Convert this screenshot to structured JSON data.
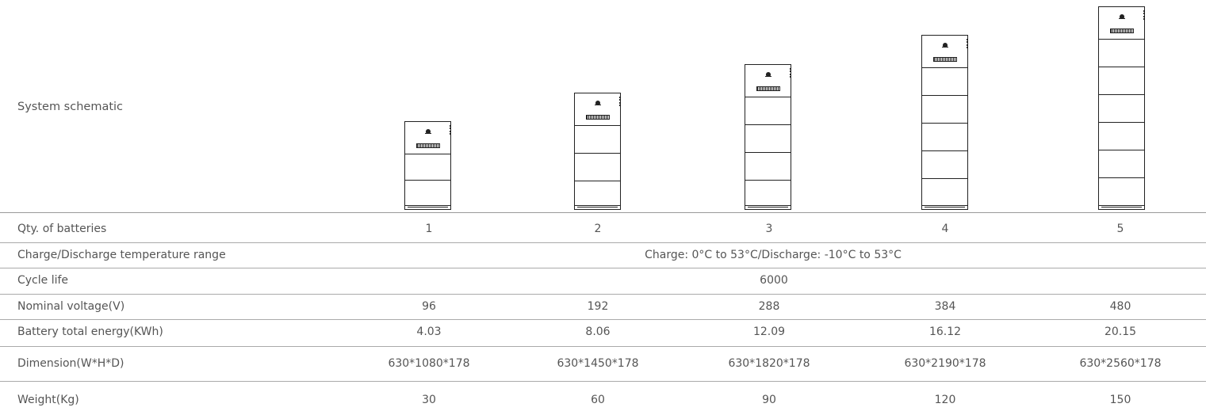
{
  "schematic": {
    "label": "System schematic"
  },
  "columns": [
    "1",
    "2",
    "3",
    "4",
    "5"
  ],
  "rows": [
    {
      "label": "Qty. of batteries",
      "values": [
        "1",
        "2",
        "3",
        "4",
        "5"
      ]
    },
    {
      "label": "Charge/Discharge temperature range",
      "span": "Charge: 0°C to 53°C/Discharge: -10°C to 53°C"
    },
    {
      "label": "Cycle life",
      "span": "6000"
    },
    {
      "label": "Nominal voltage(V)",
      "values": [
        "96",
        "192",
        "288",
        "384",
        "480"
      ]
    },
    {
      "label": "Battery total energy(KWh)",
      "values": [
        "4.03",
        "8.06",
        "12.09",
        "16.12",
        "20.15"
      ]
    },
    {
      "label": "Dimension(W*H*D)",
      "values": [
        "630*1080*178",
        "630*1450*178",
        "630*1820*178",
        "630*2190*178",
        "630*2560*178"
      ]
    },
    {
      "label": "Weight(Kg)",
      "values": [
        "30",
        "60",
        "90",
        "120",
        "150"
      ]
    }
  ]
}
